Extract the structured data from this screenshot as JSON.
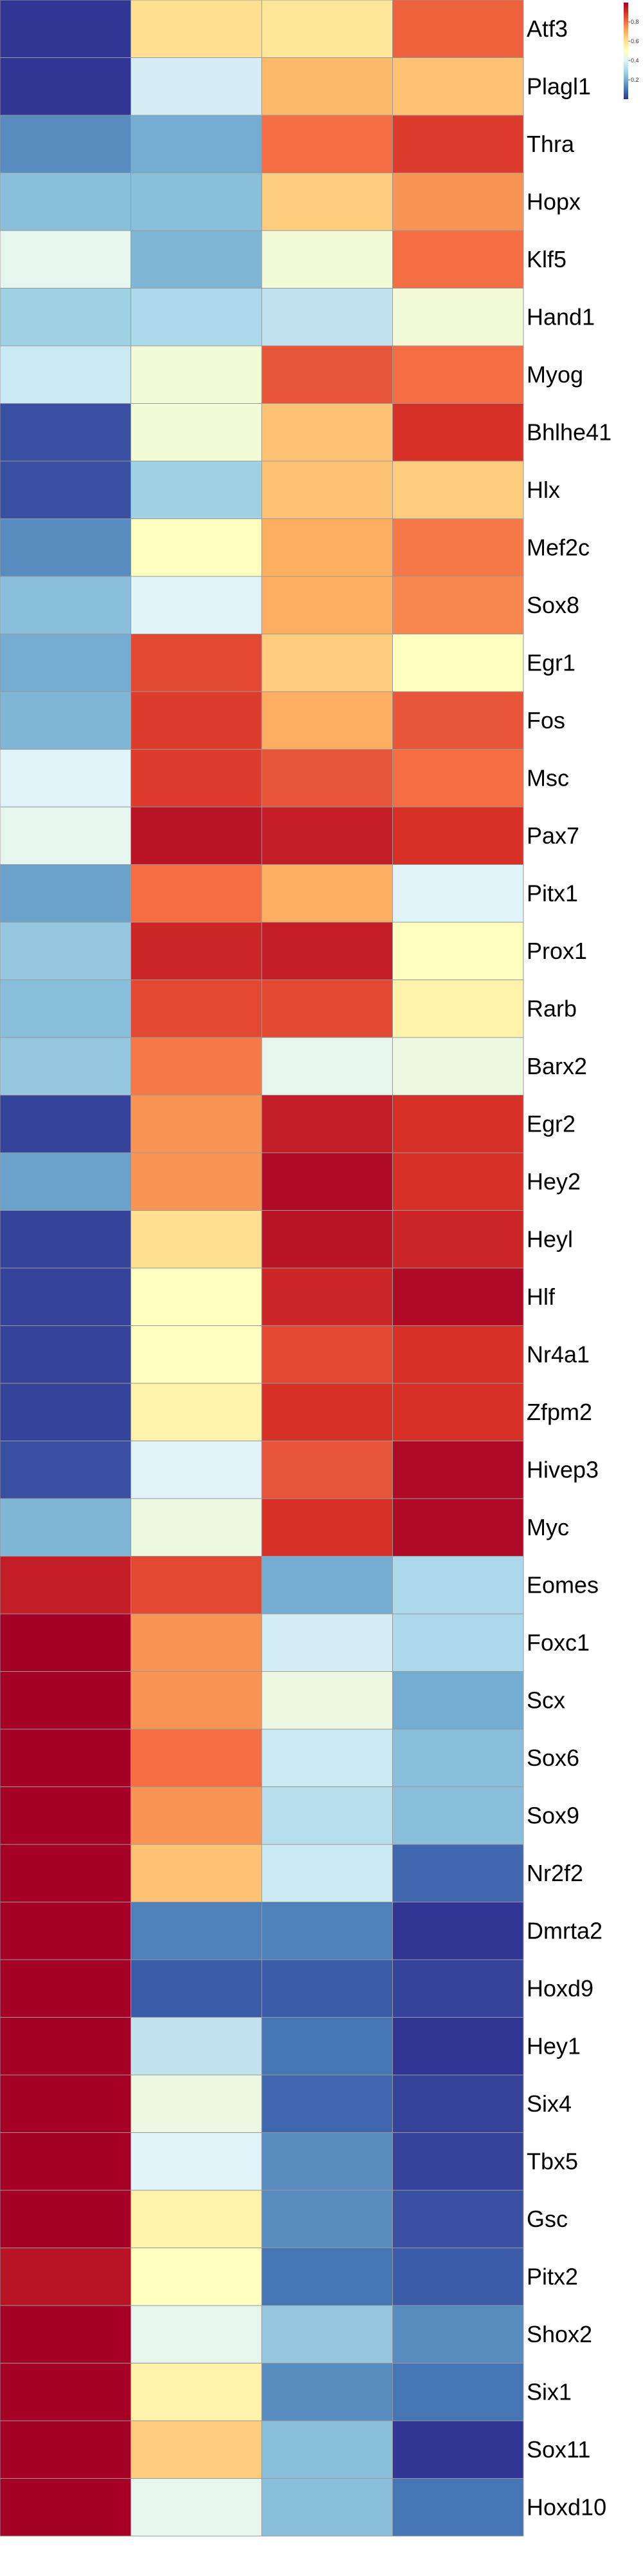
{
  "chart_data": {
    "type": "heatmap",
    "columns": [
      "",
      "",
      "",
      ""
    ],
    "rows": [
      {
        "gene": "Atf3",
        "values": [
          0.0,
          0.6,
          0.58,
          0.82
        ]
      },
      {
        "gene": "Plagl1",
        "values": [
          0.0,
          0.38,
          0.68,
          0.66
        ]
      },
      {
        "gene": "Thra",
        "values": [
          0.14,
          0.2,
          0.8,
          0.88
        ]
      },
      {
        "gene": "Hopx",
        "values": [
          0.24,
          0.24,
          0.64,
          0.74
        ]
      },
      {
        "gene": "Klf5",
        "values": [
          0.42,
          0.22,
          0.46,
          0.8
        ]
      },
      {
        "gene": "Hand1",
        "values": [
          0.28,
          0.3,
          0.34,
          0.46
        ]
      },
      {
        "gene": "Myog",
        "values": [
          0.36,
          0.46,
          0.84,
          0.8
        ]
      },
      {
        "gene": "Bhlhe41",
        "values": [
          0.04,
          0.46,
          0.66,
          0.9
        ]
      },
      {
        "gene": "Hlx",
        "values": [
          0.04,
          0.28,
          0.66,
          0.64
        ]
      },
      {
        "gene": "Mef2c",
        "values": [
          0.14,
          0.5,
          0.7,
          0.78
        ]
      },
      {
        "gene": "Sox8",
        "values": [
          0.24,
          0.4,
          0.7,
          0.76
        ]
      },
      {
        "gene": "Egr1",
        "values": [
          0.2,
          0.86,
          0.64,
          0.5
        ]
      },
      {
        "gene": "Fos",
        "values": [
          0.22,
          0.88,
          0.7,
          0.84
        ]
      },
      {
        "gene": "Msc",
        "values": [
          0.4,
          0.88,
          0.84,
          0.8
        ]
      },
      {
        "gene": "Pax7",
        "values": [
          0.42,
          0.96,
          0.94,
          0.9
        ]
      },
      {
        "gene": "Pitx1",
        "values": [
          0.18,
          0.8,
          0.7,
          0.4
        ]
      },
      {
        "gene": "Prox1",
        "values": [
          0.26,
          0.92,
          0.94,
          0.5
        ]
      },
      {
        "gene": "Rarb",
        "values": [
          0.24,
          0.86,
          0.86,
          0.54
        ]
      },
      {
        "gene": "Barx2",
        "values": [
          0.26,
          0.78,
          0.42,
          0.44
        ]
      },
      {
        "gene": "Egr2",
        "values": [
          0.02,
          0.74,
          0.94,
          0.9
        ]
      },
      {
        "gene": "Hey2",
        "values": [
          0.18,
          0.74,
          0.98,
          0.9
        ]
      },
      {
        "gene": "Heyl",
        "values": [
          0.02,
          0.6,
          0.96,
          0.92
        ]
      },
      {
        "gene": "Hlf",
        "values": [
          0.02,
          0.5,
          0.92,
          0.98
        ]
      },
      {
        "gene": "Nr4a1",
        "values": [
          0.02,
          0.5,
          0.86,
          0.9
        ]
      },
      {
        "gene": "Zfpm2",
        "values": [
          0.02,
          0.54,
          0.9,
          0.9
        ]
      },
      {
        "gene": "Hivep3",
        "values": [
          0.04,
          0.4,
          0.84,
          0.98
        ]
      },
      {
        "gene": "Myc",
        "values": [
          0.22,
          0.44,
          0.9,
          0.98
        ]
      },
      {
        "gene": "Eomes",
        "values": [
          0.94,
          0.86,
          0.2,
          0.3
        ]
      },
      {
        "gene": "Foxc1",
        "values": [
          1.0,
          0.74,
          0.38,
          0.3
        ]
      },
      {
        "gene": "Scx",
        "values": [
          1.0,
          0.74,
          0.44,
          0.2
        ]
      },
      {
        "gene": "Sox6",
        "values": [
          1.0,
          0.8,
          0.36,
          0.24
        ]
      },
      {
        "gene": "Sox9",
        "values": [
          1.0,
          0.74,
          0.32,
          0.24
        ]
      },
      {
        "gene": "Nr2f2",
        "values": [
          1.0,
          0.66,
          0.36,
          0.08
        ]
      },
      {
        "gene": "Dmrta2",
        "values": [
          1.0,
          0.12,
          0.12,
          0.0
        ]
      },
      {
        "gene": "Hoxd9",
        "values": [
          1.0,
          0.06,
          0.06,
          0.02
        ]
      },
      {
        "gene": "Hey1",
        "values": [
          1.0,
          0.34,
          0.1,
          0.0
        ]
      },
      {
        "gene": "Six4",
        "values": [
          1.0,
          0.44,
          0.08,
          0.02
        ]
      },
      {
        "gene": "Tbx5",
        "values": [
          1.0,
          0.4,
          0.14,
          0.02
        ]
      },
      {
        "gene": "Gsc",
        "values": [
          1.0,
          0.54,
          0.14,
          0.04
        ]
      },
      {
        "gene": "Pitx2",
        "values": [
          0.96,
          0.5,
          0.1,
          0.06
        ]
      },
      {
        "gene": "Shox2",
        "values": [
          1.0,
          0.42,
          0.26,
          0.14
        ]
      },
      {
        "gene": "Six1",
        "values": [
          1.0,
          0.54,
          0.14,
          0.1
        ]
      },
      {
        "gene": "Sox11",
        "values": [
          1.0,
          0.64,
          0.24,
          0.0
        ]
      },
      {
        "gene": "Hoxd10",
        "values": [
          1.0,
          0.42,
          0.24,
          0.1
        ]
      }
    ],
    "scale_min": 0,
    "scale_max": 1,
    "legend": {
      "placement": "top-right",
      "ticks": [
        0.2,
        0.4,
        0.6,
        0.8
      ],
      "tick_labels": [
        "0.2",
        "0.4",
        "0.6",
        "0.8"
      ]
    },
    "palette": [
      "#313695",
      "#4575b4",
      "#74add1",
      "#abd9e9",
      "#e0f3f8",
      "#ffffbf",
      "#fee090",
      "#fdae61",
      "#f46d43",
      "#d73027",
      "#a50026"
    ],
    "cell_border_color": "#999999"
  }
}
